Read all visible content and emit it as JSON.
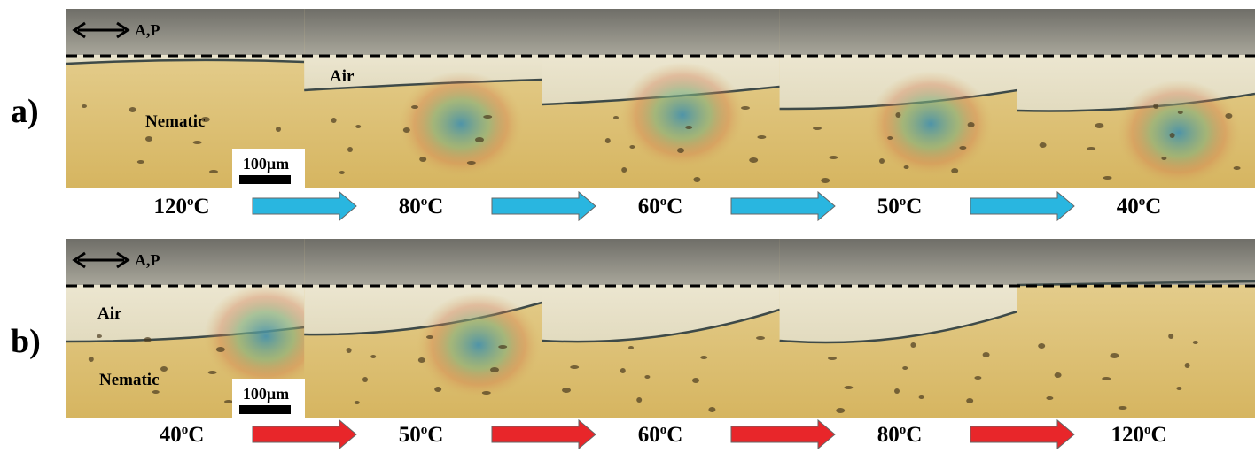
{
  "rows": [
    {
      "label": "a)",
      "polarizer": "A,P",
      "air": "Air",
      "nematic": "Nematic",
      "scale_bar": "100µm",
      "arrow_color": "#29b6e0",
      "temperatures": [
        {
          "number": "120",
          "sup": "o",
          "unit": "C"
        },
        {
          "number": "80",
          "sup": "o",
          "unit": "C"
        },
        {
          "number": "60",
          "sup": "o",
          "unit": "C"
        },
        {
          "number": "50",
          "sup": "o",
          "unit": "C"
        },
        {
          "number": "40",
          "sup": "o",
          "unit": "C"
        }
      ]
    },
    {
      "label": "b)",
      "polarizer": "A,P",
      "air": "Air",
      "nematic": "Nematic",
      "scale_bar": "100µm",
      "arrow_color": "#e8262a",
      "temperatures": [
        {
          "number": "40",
          "sup": "o",
          "unit": "C"
        },
        {
          "number": "50",
          "sup": "o",
          "unit": "C"
        },
        {
          "number": "60",
          "sup": "o",
          "unit": "C"
        },
        {
          "number": "80",
          "sup": "o",
          "unit": "C"
        },
        {
          "number": "120",
          "sup": "o",
          "unit": "C"
        }
      ]
    }
  ]
}
